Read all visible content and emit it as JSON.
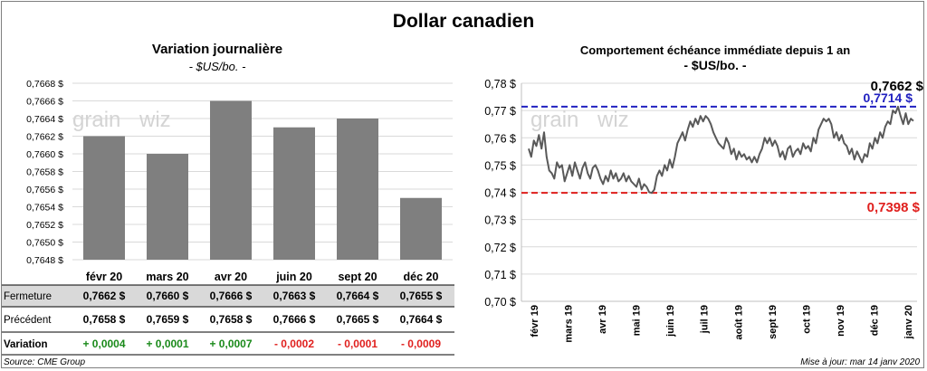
{
  "title": "Dollar canadien",
  "left": {
    "title": "Variation  journalière",
    "subtitle": "- $US/bo. -",
    "chart_data": {
      "type": "bar",
      "categories": [
        "févr 20",
        "mars 20",
        "avr 20",
        "juin 20",
        "sept 20",
        "déc 20"
      ],
      "values": [
        0.7662,
        0.766,
        0.7666,
        0.7663,
        0.7664,
        0.7655
      ],
      "ylim": [
        0.7648,
        0.7668
      ],
      "yticks": [
        "0,7648 $",
        "0,7650 $",
        "0,7652 $",
        "0,7654 $",
        "0,7656 $",
        "0,7658 $",
        "0,7660 $",
        "0,7662 $",
        "0,7664 $",
        "0,7666 $",
        "0,7668 $"
      ],
      "grid": true,
      "bar_color": "#7f7f7f"
    },
    "table": {
      "rows": [
        {
          "label": "Fermeture",
          "values": [
            "0,7662  $",
            "0,7660  $",
            "0,7666  $",
            "0,7663  $",
            "0,7664  $",
            "0,7655  $"
          ]
        },
        {
          "label": "Précédent",
          "values": [
            "0,7658  $",
            "0,7659  $",
            "0,7658  $",
            "0,7666  $",
            "0,7665  $",
            "0,7664  $"
          ]
        },
        {
          "label": "Variation",
          "values": [
            "+ 0,0004",
            "+ 0,0001",
            "+ 0,0007",
            "- 0,0002",
            "- 0,0001",
            "- 0,0009"
          ]
        }
      ]
    },
    "source": "Source: CME Group"
  },
  "right": {
    "title": "Comportement échéance immédiate depuis 1 an",
    "subtitle": "- $US/bo. -",
    "chart_data": {
      "type": "line",
      "ylim": [
        0.7,
        0.78
      ],
      "yticks": [
        "0,70 $",
        "0,71 $",
        "0,72 $",
        "0,73 $",
        "0,74 $",
        "0,75 $",
        "0,76 $",
        "0,77 $",
        "0,78 $"
      ],
      "xticks": [
        "févr 19",
        "mars 19",
        "avr 19",
        "mai 19",
        "juin 19",
        "juil 19",
        "août 19",
        "sept 19",
        "oct 19",
        "nov 19",
        "déc 19",
        "janv 20"
      ],
      "series": [
        {
          "values": [
            0.756,
            0.753,
            0.759,
            0.757,
            0.761,
            0.756,
            0.762,
            0.753,
            0.748,
            0.747,
            0.745,
            0.751,
            0.749,
            0.75,
            0.744,
            0.747,
            0.75,
            0.746,
            0.751,
            0.748,
            0.745,
            0.749,
            0.751,
            0.747,
            0.745,
            0.749,
            0.75,
            0.748,
            0.745,
            0.743,
            0.746,
            0.744,
            0.748,
            0.745,
            0.747,
            0.744,
            0.745,
            0.747,
            0.744,
            0.746,
            0.744,
            0.743,
            0.742,
            0.745,
            0.741,
            0.743,
            0.742,
            0.74,
            0.7398,
            0.741,
            0.746,
            0.748,
            0.746,
            0.75,
            0.748,
            0.752,
            0.749,
            0.753,
            0.758,
            0.76,
            0.762,
            0.759,
            0.763,
            0.766,
            0.764,
            0.767,
            0.765,
            0.768,
            0.766,
            0.768,
            0.767,
            0.765,
            0.762,
            0.76,
            0.758,
            0.757,
            0.756,
            0.76,
            0.758,
            0.754,
            0.756,
            0.752,
            0.755,
            0.753,
            0.754,
            0.752,
            0.753,
            0.751,
            0.753,
            0.751,
            0.754,
            0.756,
            0.76,
            0.758,
            0.76,
            0.757,
            0.759,
            0.757,
            0.753,
            0.755,
            0.752,
            0.756,
            0.757,
            0.753,
            0.755,
            0.756,
            0.754,
            0.758,
            0.756,
            0.757,
            0.755,
            0.76,
            0.758,
            0.763,
            0.765,
            0.767,
            0.766,
            0.767,
            0.765,
            0.76,
            0.762,
            0.759,
            0.761,
            0.758,
            0.757,
            0.754,
            0.756,
            0.752,
            0.755,
            0.753,
            0.751,
            0.754,
            0.753,
            0.758,
            0.756,
            0.76,
            0.758,
            0.762,
            0.76,
            0.764,
            0.766,
            0.765,
            0.77,
            0.769,
            0.7714,
            0.768,
            0.765,
            0.769,
            0.765,
            0.767,
            0.7662
          ]
        },
        {
          "name": "0,7714 $",
          "values": [
            0.7714
          ],
          "color": "#2020c0"
        },
        {
          "name": "0,7398 $",
          "values": [
            0.7398
          ],
          "color": "#e0201e"
        }
      ],
      "annotations": [
        "0,7662 $",
        "0,7714 $",
        "0,7398 $"
      ],
      "grid": true,
      "line_color": "#595959"
    },
    "updated": "Mise à jour: mar 14 janv 2020"
  },
  "watermark": "grainwiz"
}
